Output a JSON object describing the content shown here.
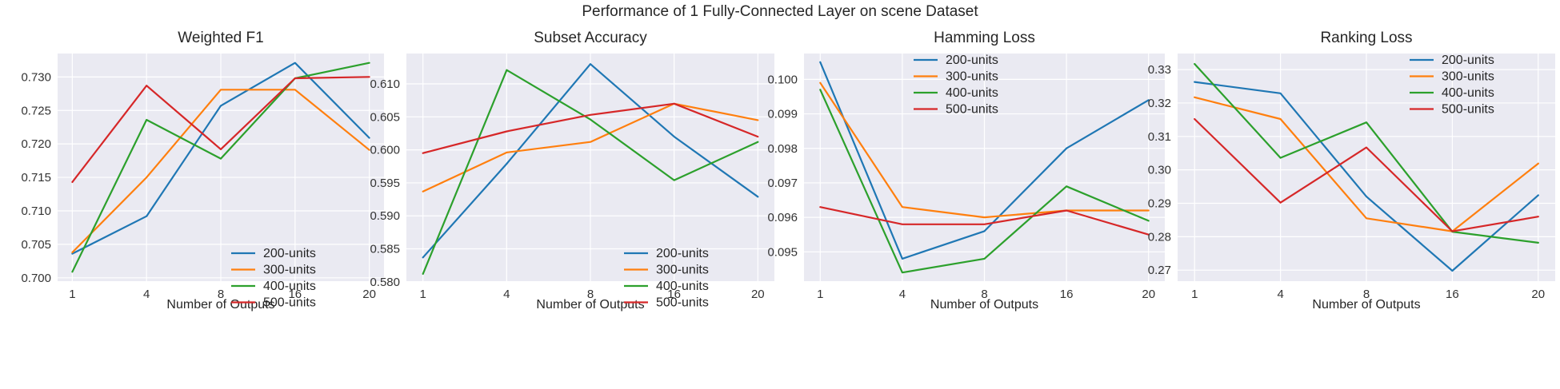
{
  "suptitle": "Performance of 1 Fully-Connected Layer on scene Dataset",
  "colors": {
    "200-units": "#1f77b4",
    "300-units": "#ff7f0e",
    "400-units": "#2ca02c",
    "500-units": "#d62728",
    "background": "#eaeaf2",
    "grid": "#ffffff"
  },
  "chart_data": [
    {
      "type": "line",
      "title": "Weighted F1",
      "xlabel": "Number of Outputs",
      "ylabel": "",
      "categories": [
        "1",
        "4",
        "8",
        "16",
        "20"
      ],
      "ylim": [
        0.6995,
        0.7335
      ],
      "yticks": [
        0.7,
        0.705,
        0.71,
        0.715,
        0.72,
        0.725,
        0.73
      ],
      "legend": "bottom-right",
      "series": [
        {
          "name": "200-units",
          "values": [
            0.7036,
            0.7092,
            0.7257,
            0.7321,
            0.7209
          ]
        },
        {
          "name": "300-units",
          "values": [
            0.7038,
            0.715,
            0.7281,
            0.7281,
            0.7191
          ]
        },
        {
          "name": "400-units",
          "values": [
            0.7009,
            0.7236,
            0.7178,
            0.7298,
            0.7321
          ]
        },
        {
          "name": "500-units",
          "values": [
            0.7143,
            0.7287,
            0.7192,
            0.7298,
            0.73
          ]
        }
      ]
    },
    {
      "type": "line",
      "title": "Subset Accuracy",
      "xlabel": "Number of Outputs",
      "ylabel": "",
      "categories": [
        "1",
        "4",
        "8",
        "16",
        "20"
      ],
      "ylim": [
        0.5801,
        0.6146
      ],
      "yticks": [
        0.58,
        0.585,
        0.59,
        0.595,
        0.6,
        0.605,
        0.61
      ],
      "legend": "bottom-right",
      "series": [
        {
          "name": "200-units",
          "values": [
            0.5837,
            0.5979,
            0.613,
            0.602,
            0.5929
          ]
        },
        {
          "name": "300-units",
          "values": [
            0.5937,
            0.5996,
            0.6012,
            0.607,
            0.6045
          ]
        },
        {
          "name": "400-units",
          "values": [
            0.5812,
            0.6121,
            0.6046,
            0.5954,
            0.6012
          ]
        },
        {
          "name": "500-units",
          "values": [
            0.5995,
            0.6028,
            0.6053,
            0.607,
            0.602
          ]
        }
      ]
    },
    {
      "type": "line",
      "title": "Hamming Loss",
      "xlabel": "Number of Outputs",
      "ylabel": "",
      "categories": [
        "1",
        "4",
        "8",
        "16",
        "20"
      ],
      "ylim": [
        0.09415,
        0.10075
      ],
      "yticks": [
        0.095,
        0.096,
        0.097,
        0.098,
        0.099,
        0.1
      ],
      "legend": "top-center",
      "series": [
        {
          "name": "200-units",
          "values": [
            0.1005,
            0.0948,
            0.0956,
            0.098,
            0.0994
          ]
        },
        {
          "name": "300-units",
          "values": [
            0.0999,
            0.0963,
            0.096,
            0.0962,
            0.0962
          ]
        },
        {
          "name": "400-units",
          "values": [
            0.0997,
            0.0944,
            0.0948,
            0.0969,
            0.0959
          ]
        },
        {
          "name": "500-units",
          "values": [
            0.0963,
            0.0958,
            0.0958,
            0.0962,
            0.0955
          ]
        }
      ]
    },
    {
      "type": "line",
      "title": "Ranking Loss",
      "xlabel": "Number of Outputs",
      "ylabel": "",
      "categories": [
        "1",
        "4",
        "8",
        "16",
        "20"
      ],
      "ylim": [
        0.2667,
        0.3348
      ],
      "yticks": [
        0.27,
        0.28,
        0.29,
        0.3,
        0.31,
        0.32,
        0.33
      ],
      "legend": "top-right",
      "series": [
        {
          "name": "200-units",
          "values": [
            0.3263,
            0.3229,
            0.292,
            0.2698,
            0.2924
          ]
        },
        {
          "name": "300-units",
          "values": [
            0.3217,
            0.3152,
            0.2855,
            0.2816,
            0.3019
          ]
        },
        {
          "name": "400-units",
          "values": [
            0.3317,
            0.3036,
            0.3142,
            0.2815,
            0.2782
          ]
        },
        {
          "name": "500-units",
          "values": [
            0.3152,
            0.2902,
            0.3067,
            0.2816,
            0.286
          ]
        }
      ]
    }
  ]
}
